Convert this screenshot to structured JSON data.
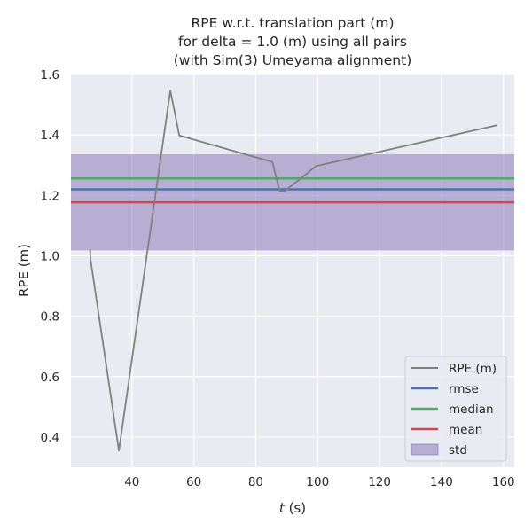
{
  "chart_data": {
    "type": "line",
    "title_lines": [
      "RPE w.r.t. translation part (m)",
      "for delta = 1.0 (m) using all pairs",
      "(with Sim(3) Umeyama alignment)"
    ],
    "xlabel_italic": "t",
    "xlabel_rest": " (s)",
    "ylabel": "RPE (m)",
    "xlim": [
      20.3,
      163.5
    ],
    "ylim": [
      0.3,
      1.6
    ],
    "xticks": [
      40,
      60,
      80,
      100,
      120,
      140,
      160
    ],
    "yticks": [
      0.4,
      0.6,
      0.8,
      1.0,
      1.2,
      1.4,
      1.6
    ],
    "xtick_labels": [
      "40",
      "60",
      "80",
      "100",
      "120",
      "140",
      "160"
    ],
    "ytick_labels": [
      "0.4",
      "0.6",
      "0.8",
      "1.0",
      "1.2",
      "1.4",
      "1.6"
    ],
    "grid": true,
    "legend_position": "lower-right",
    "series": [
      {
        "name": "RPE (m)",
        "color": "#808080",
        "x": [
          26.5,
          26.6,
          35.8,
          52.4,
          55.3,
          85.4,
          87.7,
          89.4,
          99.5,
          157.9
        ],
        "y": [
          1.02,
          0.99,
          0.355,
          1.547,
          1.398,
          1.31,
          1.214,
          1.214,
          1.297,
          1.432
        ]
      }
    ],
    "stats": {
      "rmse": {
        "name": "rmse",
        "value": 1.22,
        "color": "#4c72b0"
      },
      "median": {
        "name": "median",
        "value": 1.256,
        "color": "#55a868"
      },
      "mean": {
        "name": "mean",
        "value": 1.177,
        "color": "#c44e52"
      },
      "std": {
        "name": "std",
        "lower": 1.018,
        "upper": 1.336,
        "color": "#8172b3"
      }
    },
    "legend": [
      "RPE (m)",
      "rmse",
      "median",
      "mean",
      "std"
    ]
  }
}
